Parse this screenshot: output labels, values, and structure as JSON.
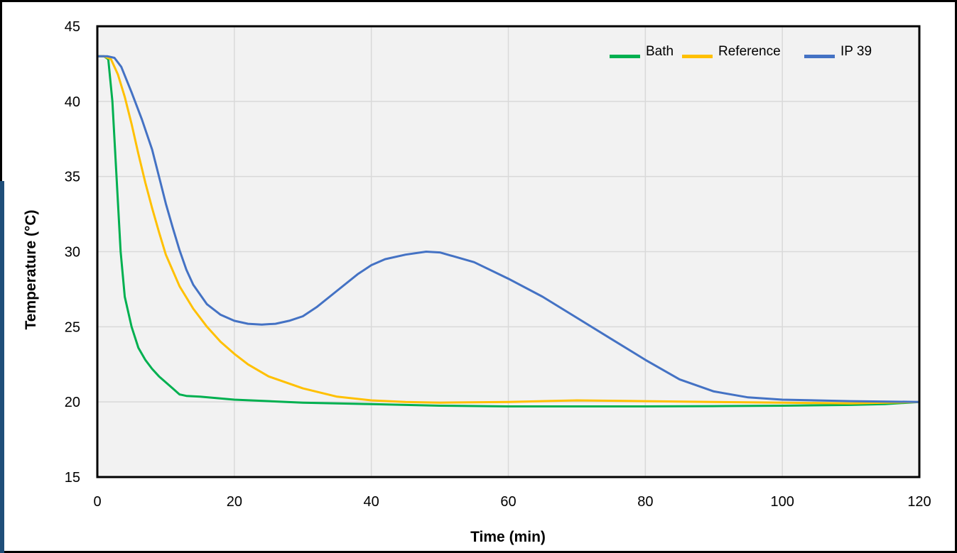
{
  "chart_data": {
    "type": "line",
    "title": "",
    "xlabel": "Time (min)",
    "ylabel": "Temperature (°C)",
    "xlim": [
      0,
      120
    ],
    "ylim": [
      15,
      45
    ],
    "x_ticks": [
      0,
      20,
      40,
      60,
      80,
      100,
      120
    ],
    "y_ticks": [
      15,
      20,
      25,
      30,
      35,
      40,
      45
    ],
    "x_tick_labels": [
      "0",
      "20",
      "40",
      "60",
      "80",
      "100",
      "120"
    ],
    "y_tick_labels": [
      "15",
      "20",
      "25",
      "30",
      "35",
      "40",
      "45"
    ],
    "grid": true,
    "legend_position": "top-right",
    "series": [
      {
        "name": "Bath",
        "color": "#00B050",
        "points": [
          [
            0,
            43
          ],
          [
            1,
            43
          ],
          [
            1.6,
            42.8
          ],
          [
            2.2,
            40
          ],
          [
            2.8,
            35
          ],
          [
            3.4,
            30
          ],
          [
            4,
            27
          ],
          [
            5,
            25
          ],
          [
            6,
            23.6
          ],
          [
            7,
            22.8
          ],
          [
            8,
            22.2
          ],
          [
            9,
            21.7
          ],
          [
            10,
            21.3
          ],
          [
            11,
            20.9
          ],
          [
            12,
            20.5
          ],
          [
            13,
            20.4
          ],
          [
            15,
            20.35
          ],
          [
            20,
            20.15
          ],
          [
            30,
            19.95
          ],
          [
            40,
            19.85
          ],
          [
            50,
            19.75
          ],
          [
            60,
            19.7
          ],
          [
            70,
            19.7
          ],
          [
            80,
            19.7
          ],
          [
            90,
            19.72
          ],
          [
            100,
            19.75
          ],
          [
            110,
            19.8
          ],
          [
            115,
            19.85
          ],
          [
            120,
            20
          ]
        ]
      },
      {
        "name": "Reference",
        "color": "#FFC000",
        "points": [
          [
            0,
            43
          ],
          [
            1,
            43
          ],
          [
            2,
            42.8
          ],
          [
            3,
            41.8
          ],
          [
            4,
            40.3
          ],
          [
            5,
            38.5
          ],
          [
            6,
            36.5
          ],
          [
            7,
            34.6
          ],
          [
            8,
            32.9
          ],
          [
            9,
            31.3
          ],
          [
            10,
            29.8
          ],
          [
            12,
            27.7
          ],
          [
            14,
            26.2
          ],
          [
            16,
            25
          ],
          [
            18,
            24
          ],
          [
            20,
            23.2
          ],
          [
            22,
            22.5
          ],
          [
            25,
            21.7
          ],
          [
            30,
            20.9
          ],
          [
            35,
            20.35
          ],
          [
            40,
            20.1
          ],
          [
            45,
            20
          ],
          [
            50,
            19.95
          ],
          [
            60,
            20
          ],
          [
            70,
            20.1
          ],
          [
            80,
            20.05
          ],
          [
            90,
            20
          ],
          [
            100,
            19.95
          ],
          [
            110,
            19.9
          ],
          [
            120,
            20
          ]
        ]
      },
      {
        "name": "IP 39",
        "color": "#4472C4",
        "points": [
          [
            0,
            43
          ],
          [
            1.5,
            43
          ],
          [
            2.5,
            42.9
          ],
          [
            3.5,
            42.3
          ],
          [
            5,
            40.6
          ],
          [
            6.5,
            38.8
          ],
          [
            8,
            36.8
          ],
          [
            9,
            35
          ],
          [
            10,
            33.2
          ],
          [
            11,
            31.6
          ],
          [
            12,
            30.1
          ],
          [
            13,
            28.8
          ],
          [
            14,
            27.8
          ],
          [
            16,
            26.5
          ],
          [
            18,
            25.8
          ],
          [
            20,
            25.4
          ],
          [
            22,
            25.2
          ],
          [
            24,
            25.15
          ],
          [
            26,
            25.2
          ],
          [
            28,
            25.4
          ],
          [
            30,
            25.7
          ],
          [
            32,
            26.3
          ],
          [
            35,
            27.4
          ],
          [
            38,
            28.5
          ],
          [
            40,
            29.1
          ],
          [
            42,
            29.5
          ],
          [
            45,
            29.8
          ],
          [
            48,
            30
          ],
          [
            50,
            29.95
          ],
          [
            55,
            29.3
          ],
          [
            60,
            28.2
          ],
          [
            65,
            27
          ],
          [
            70,
            25.6
          ],
          [
            75,
            24.2
          ],
          [
            80,
            22.8
          ],
          [
            85,
            21.5
          ],
          [
            90,
            20.7
          ],
          [
            95,
            20.3
          ],
          [
            100,
            20.15
          ],
          [
            110,
            20.05
          ],
          [
            120,
            20
          ]
        ]
      }
    ]
  }
}
